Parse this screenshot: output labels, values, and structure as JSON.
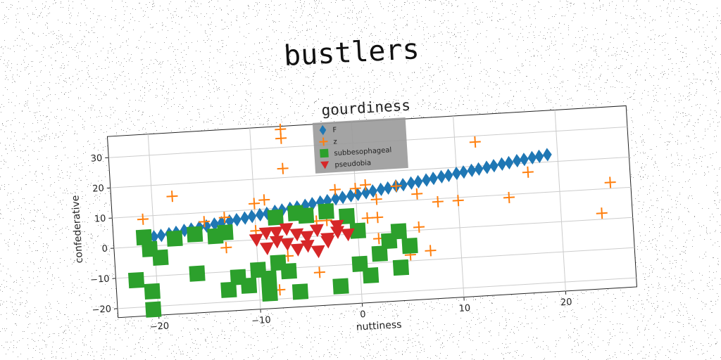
{
  "chart_data": {
    "type": "scatter",
    "suptitle": "bustlers",
    "title": "gourdiness",
    "xlabel": "nuttiness",
    "ylabel": "confederative",
    "xlim": [
      -24,
      27
    ],
    "ylim": [
      -23,
      37
    ],
    "xticks": [
      -20,
      -10,
      0,
      10,
      20
    ],
    "yticks": [
      -20,
      -10,
      0,
      10,
      20,
      30
    ],
    "grid": true,
    "legend_position": "top-center",
    "series": [
      {
        "name": "F",
        "marker": "diamond",
        "color": "#1f77b4",
        "points": [
          [
            -20,
            3
          ],
          [
            -19.3,
            3.3
          ],
          [
            -18.5,
            3.7
          ],
          [
            -17.8,
            4
          ],
          [
            -17,
            4.5
          ],
          [
            -16.3,
            4.8
          ],
          [
            -15.5,
            5.2
          ],
          [
            -14.8,
            5.5
          ],
          [
            -14,
            6
          ],
          [
            -13.3,
            6.3
          ],
          [
            -12.5,
            6.7
          ],
          [
            -11.8,
            7
          ],
          [
            -11,
            7.4
          ],
          [
            -10.3,
            7.8
          ],
          [
            -9.5,
            8.2
          ],
          [
            -8.8,
            8.5
          ],
          [
            -8,
            9
          ],
          [
            -7.3,
            9.3
          ],
          [
            -6.5,
            9.7
          ],
          [
            -5.8,
            10
          ],
          [
            -5,
            10.4
          ],
          [
            -4.3,
            10.8
          ],
          [
            -3.5,
            11.2
          ],
          [
            -2.8,
            11.5
          ],
          [
            -2,
            12
          ],
          [
            -1.3,
            12.3
          ],
          [
            -0.5,
            12.7
          ],
          [
            0.2,
            13
          ],
          [
            1,
            13.4
          ],
          [
            1.7,
            13.8
          ],
          [
            2.5,
            14.2
          ],
          [
            3.2,
            14.5
          ],
          [
            4,
            15
          ],
          [
            4.7,
            15.3
          ],
          [
            5.5,
            15.7
          ],
          [
            6.2,
            16
          ],
          [
            7,
            16.4
          ],
          [
            7.7,
            16.8
          ],
          [
            8.5,
            17.2
          ],
          [
            9.2,
            17.5
          ],
          [
            10,
            18
          ],
          [
            10.7,
            18.3
          ],
          [
            11.5,
            18.7
          ],
          [
            12.2,
            19
          ],
          [
            13,
            19.4
          ],
          [
            13.7,
            19.8
          ],
          [
            14.5,
            20.2
          ],
          [
            15.2,
            20.5
          ],
          [
            16,
            21
          ],
          [
            16.7,
            21.3
          ],
          [
            17.5,
            21.7
          ],
          [
            18.2,
            22
          ],
          [
            19,
            22.4
          ]
        ]
      },
      {
        "name": "z",
        "marker": "plus",
        "color": "#ff7f0e",
        "points": [
          [
            -7,
            36
          ],
          [
            -7,
            33
          ],
          [
            -18,
            16
          ],
          [
            -21,
            9
          ],
          [
            -15,
            7
          ],
          [
            -13,
            8
          ],
          [
            -10,
            12
          ],
          [
            -9,
            13
          ],
          [
            -7,
            23
          ],
          [
            -4,
            -12
          ],
          [
            -2,
            15
          ],
          [
            0,
            15
          ],
          [
            1,
            16
          ],
          [
            2,
            11
          ],
          [
            4,
            15
          ],
          [
            6,
            12
          ],
          [
            8,
            9
          ],
          [
            10,
            9
          ],
          [
            12,
            28
          ],
          [
            15,
            9
          ],
          [
            17,
            17
          ],
          [
            25,
            12
          ],
          [
            24,
            2
          ],
          [
            2,
            -2
          ],
          [
            6,
            1
          ],
          [
            5,
            -8
          ],
          [
            7,
            -7
          ],
          [
            -13,
            -2
          ],
          [
            -10,
            3
          ],
          [
            -4,
            5
          ],
          [
            -7,
            -6
          ],
          [
            -8,
            -17
          ],
          [
            -3,
            5
          ],
          [
            1,
            5
          ],
          [
            2,
            5
          ]
        ]
      },
      {
        "name": "subbesophageal",
        "marker": "square",
        "color": "#2ca02c",
        "points": [
          [
            -21,
            3
          ],
          [
            -20.5,
            -1
          ],
          [
            -19.5,
            -4
          ],
          [
            -22,
            -11
          ],
          [
            -20.5,
            -15
          ],
          [
            -20.5,
            -21
          ],
          [
            -18,
            2
          ],
          [
            -16,
            3
          ],
          [
            -14,
            2
          ],
          [
            -13,
            3
          ],
          [
            -16,
            -10
          ],
          [
            -13,
            -16
          ],
          [
            -12,
            -12
          ],
          [
            -11,
            -15
          ],
          [
            -10,
            -10
          ],
          [
            -8,
            -8
          ],
          [
            -9,
            -13
          ],
          [
            -7,
            -11
          ],
          [
            -9,
            -18
          ],
          [
            -6,
            -18
          ],
          [
            -2,
            -17
          ],
          [
            0,
            -10
          ],
          [
            1,
            -14
          ],
          [
            2,
            -7
          ],
          [
            3,
            -3
          ],
          [
            4,
            0
          ],
          [
            5,
            -5
          ],
          [
            4,
            -12
          ],
          [
            -8,
            7
          ],
          [
            -6,
            8
          ],
          [
            -5,
            7
          ],
          [
            -3,
            8
          ],
          [
            -1,
            6
          ],
          [
            0,
            1
          ]
        ]
      },
      {
        "name": "pseudobia",
        "marker": "triangle-down",
        "color": "#d62728",
        "points": [
          [
            -10,
            0
          ],
          [
            -9,
            2
          ],
          [
            -8,
            -1
          ],
          [
            -7,
            3
          ],
          [
            -6,
            1
          ],
          [
            -5,
            0
          ],
          [
            -4,
            2
          ],
          [
            -3,
            -1
          ],
          [
            -2,
            1
          ],
          [
            -1,
            0
          ],
          [
            -9,
            -3
          ],
          [
            -7,
            -2
          ],
          [
            -5,
            -3
          ],
          [
            -3,
            -2
          ],
          [
            -6,
            -4
          ],
          [
            -4,
            -5
          ],
          [
            -8,
            2
          ],
          [
            -2,
            3
          ]
        ]
      }
    ]
  }
}
